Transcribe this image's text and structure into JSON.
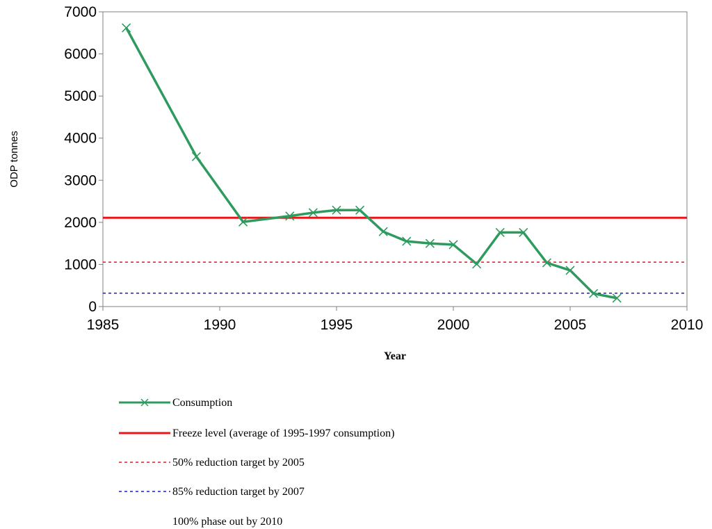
{
  "chart_data": {
    "type": "line",
    "xlabel": "Year",
    "ylabel": "ODP tonnes",
    "xlim": [
      1985,
      2010
    ],
    "ylim": [
      0,
      7000
    ],
    "xticks": [
      1985,
      1990,
      1995,
      2000,
      2005,
      2010
    ],
    "yticks": [
      0,
      1000,
      2000,
      3000,
      4000,
      5000,
      6000,
      7000
    ],
    "grid": false,
    "legend_position": "bottom",
    "series": [
      {
        "name": "Consumption",
        "color": "#2e9b5e",
        "style": "line-with-x-markers",
        "x": [
          1986,
          1989,
          1991,
          1993,
          1994,
          1995,
          1996,
          1997,
          1998,
          1999,
          2000,
          2001,
          2002,
          2003,
          2004,
          2005,
          2006,
          2007
        ],
        "y": [
          6620,
          3560,
          2010,
          2150,
          2230,
          2290,
          2290,
          1780,
          1550,
          1500,
          1470,
          1010,
          1760,
          1760,
          1040,
          860,
          310,
          200
        ]
      },
      {
        "name": "Freeze level (average of 1995-1997 consumption)",
        "color": "#e8161b",
        "style": "solid",
        "y": 2110
      },
      {
        "name": "50% reduction target by 2005",
        "color": "#e8161b",
        "style": "dotted",
        "y": 1055
      },
      {
        "name": "85% reduction target by 2007",
        "color": "#1a1ad6",
        "style": "dotted",
        "y": 317
      },
      {
        "name": "100% phase out by 2010",
        "color": "#ffffff",
        "style": "none",
        "y": 0
      }
    ]
  }
}
